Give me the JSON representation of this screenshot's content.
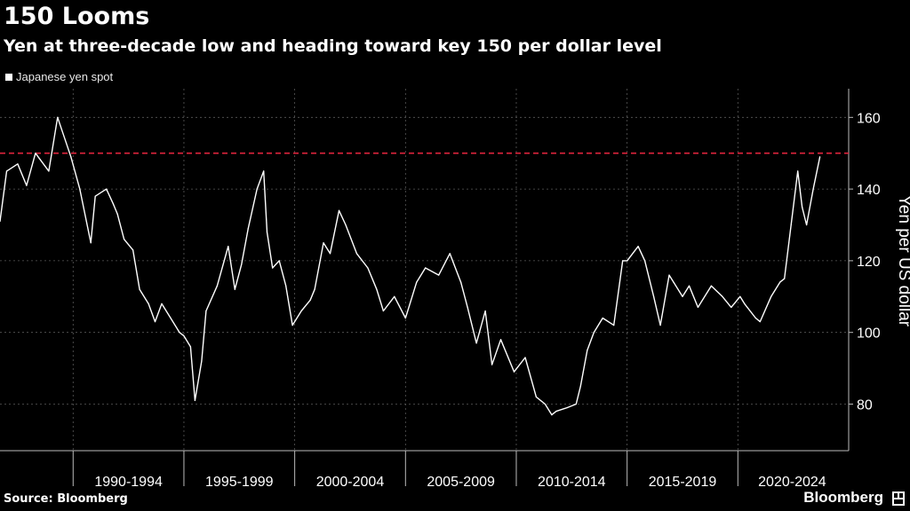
{
  "header": {
    "title": "150 Looms",
    "subtitle": "Yen at three-decade low and heading toward key 150 per dollar level"
  },
  "footer": {
    "source": "Source: Bloomberg",
    "brand": "Bloomberg"
  },
  "colors": {
    "background": "#000000",
    "line": "#ffffff",
    "reference_line": "#e0243c",
    "grid": "#5a5a5a"
  },
  "chart_data": {
    "type": "line",
    "title": "150 Looms",
    "subtitle": "Yen at three-decade low and heading toward key 150 per dollar level",
    "xlabel": "",
    "ylabel": "Yen per US dollar",
    "x_unit": "year",
    "xlim": [
      1986.7,
      2025.0
    ],
    "ylim": [
      67,
      168
    ],
    "y_ticks": [
      80,
      100,
      120,
      140,
      160
    ],
    "x_tick_labels": [
      "1990-1994",
      "1995-1999",
      "2000-2004",
      "2005-2009",
      "2010-2014",
      "2015-2019",
      "2020-2024"
    ],
    "grid": true,
    "legend_position": "top-left",
    "reference_line": {
      "value": 150,
      "style": "dashed",
      "color": "#e0243c"
    },
    "series": [
      {
        "name": "Japanese yen spot",
        "x": [
          1986.7,
          1987.0,
          1987.5,
          1987.9,
          1988.3,
          1988.9,
          1989.3,
          1989.9,
          1990.3,
          1990.8,
          1991.0,
          1991.5,
          1991.8,
          1992.0,
          1992.3,
          1992.7,
          1993.0,
          1993.4,
          1993.7,
          1994.0,
          1994.4,
          1994.8,
          1995.0,
          1995.3,
          1995.5,
          1995.8,
          1996.0,
          1996.5,
          1997.0,
          1997.3,
          1997.6,
          1997.9,
          1998.3,
          1998.6,
          1998.75,
          1999.0,
          1999.3,
          1999.6,
          1999.9,
          2000.3,
          2000.7,
          2000.9,
          2001.3,
          2001.6,
          2002.0,
          2002.3,
          2002.8,
          2003.3,
          2003.7,
          2004.0,
          2004.5,
          2005.0,
          2005.5,
          2005.9,
          2006.5,
          2007.0,
          2007.5,
          2007.8,
          2008.2,
          2008.6,
          2008.9,
          2009.3,
          2009.9,
          2010.4,
          2010.9,
          2011.3,
          2011.6,
          2011.8,
          2012.3,
          2012.7,
          2012.9,
          2013.2,
          2013.5,
          2013.9,
          2014.4,
          2014.8,
          2015.0,
          2015.5,
          2015.8,
          2016.2,
          2016.5,
          2016.9,
          2017.1,
          2017.5,
          2017.8,
          2018.2,
          2018.8,
          2019.3,
          2019.7,
          2020.1,
          2020.3,
          2020.8,
          2021.0,
          2021.5,
          2021.9,
          2022.1,
          2022.4,
          2022.7,
          2022.9,
          2023.1,
          2023.4,
          2023.7
        ],
        "values": [
          131,
          145,
          147,
          141,
          150,
          145,
          160,
          149,
          140,
          125,
          138,
          140,
          136,
          133,
          126,
          123,
          112,
          108,
          103,
          108,
          104,
          100,
          99,
          96,
          81,
          92,
          106,
          113,
          124,
          112,
          119,
          129,
          140,
          145,
          128,
          118,
          120,
          113,
          102,
          106,
          109,
          112,
          125,
          122,
          134,
          130,
          122,
          118,
          112,
          106,
          110,
          104,
          114,
          118,
          116,
          122,
          114,
          107,
          97,
          106,
          91,
          98,
          89,
          93,
          82,
          80,
          77,
          78,
          79,
          80,
          85,
          95,
          100,
          104,
          102,
          120,
          120,
          124,
          120,
          110,
          102,
          116,
          114,
          110,
          113,
          107,
          113,
          110,
          107,
          110,
          108,
          104,
          103,
          110,
          114,
          115,
          130,
          145,
          135,
          130,
          140,
          149
        ]
      }
    ]
  }
}
